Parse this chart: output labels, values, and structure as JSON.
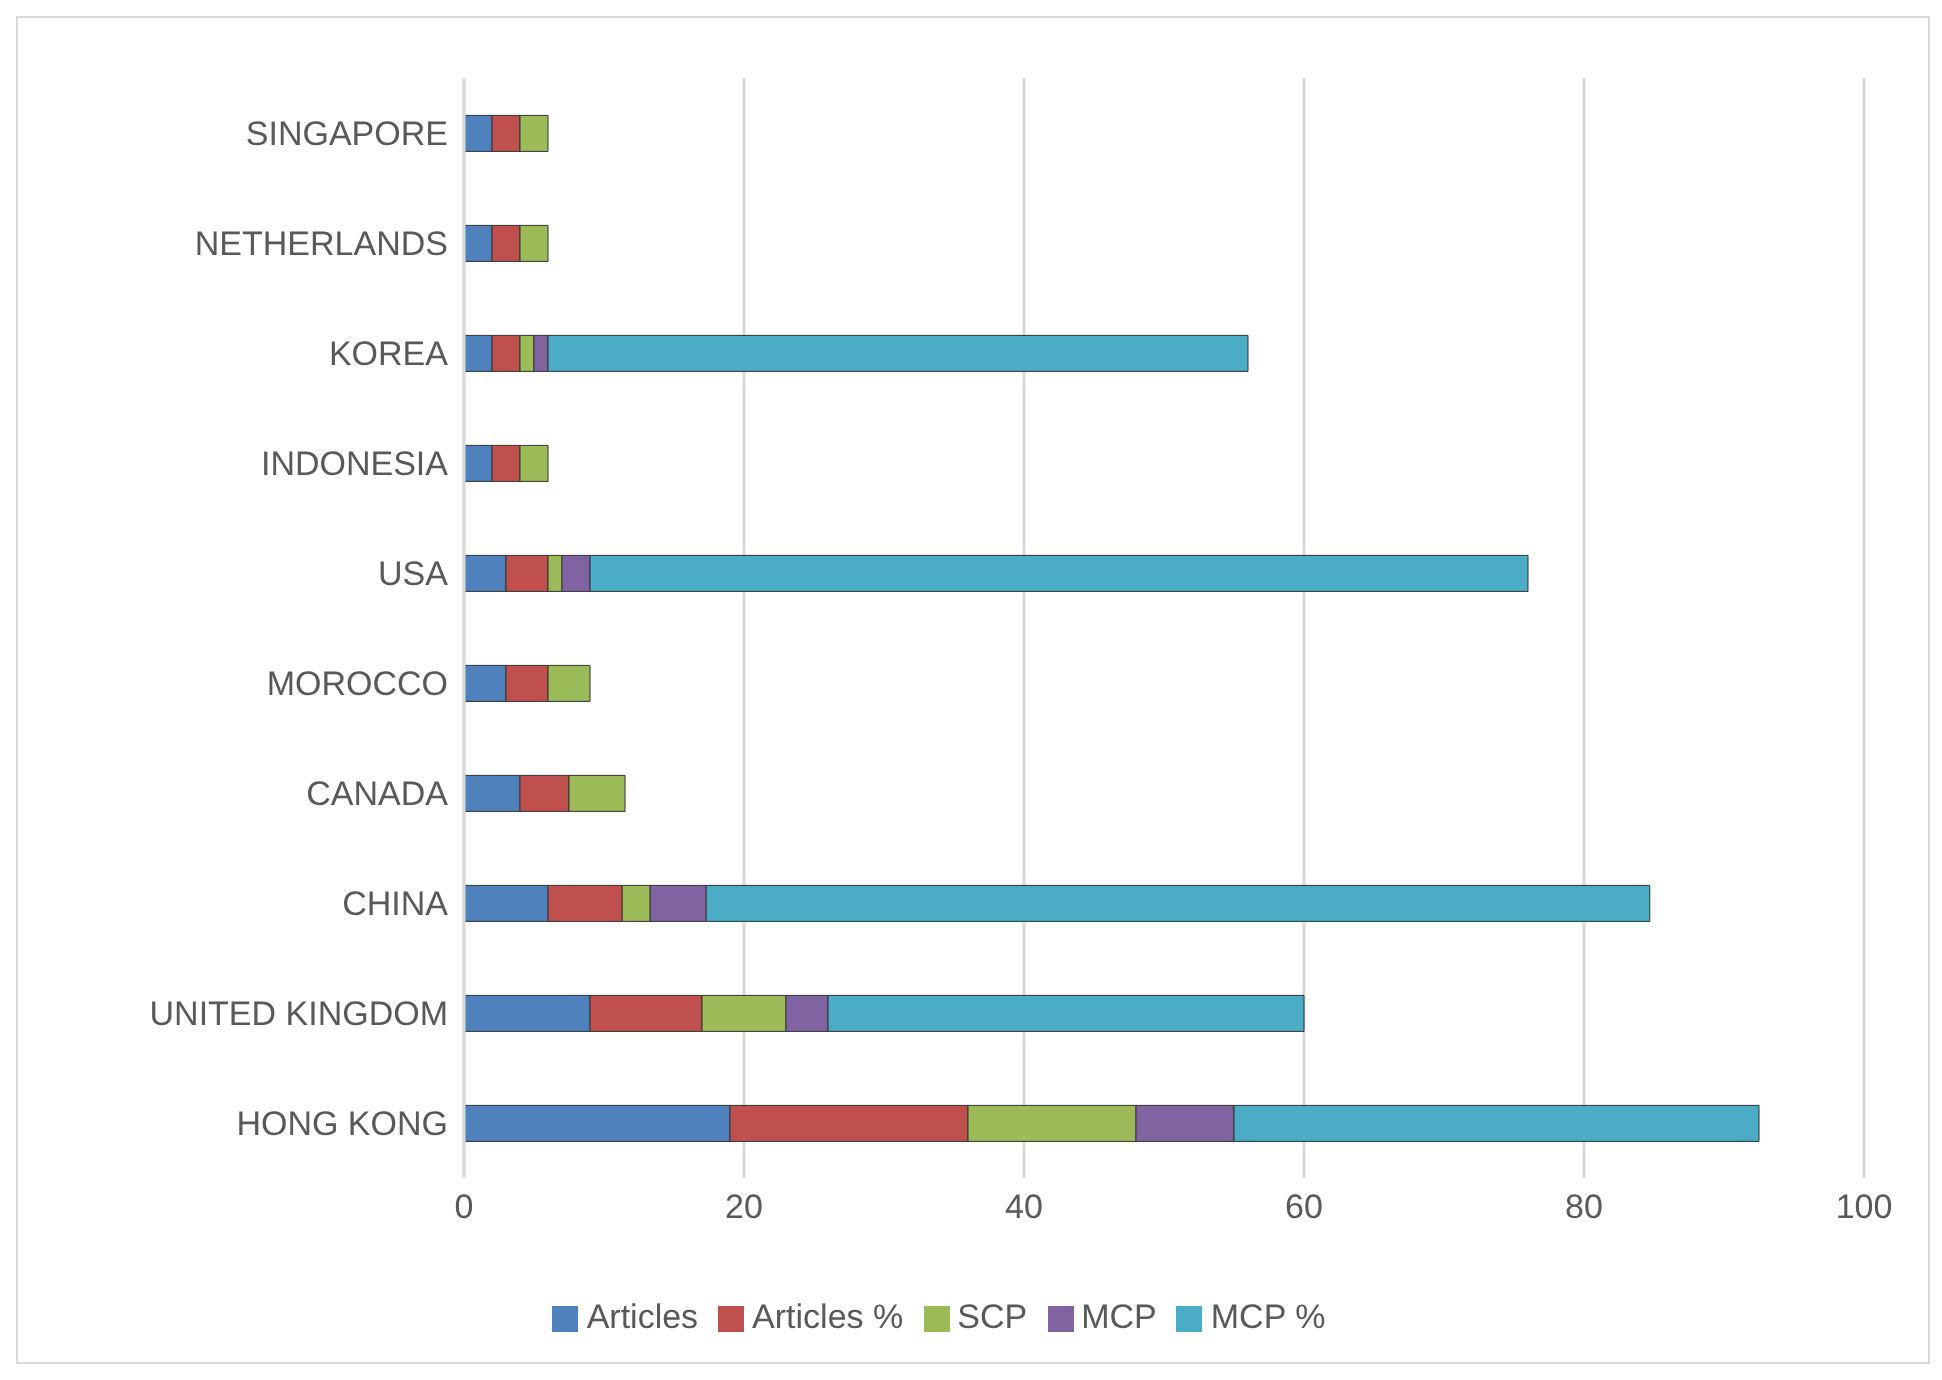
{
  "chart_data": {
    "type": "bar",
    "orientation": "horizontal",
    "stacked": true,
    "categories": [
      "SINGAPORE",
      "NETHERLANDS",
      "KOREA",
      "INDONESIA",
      "USA",
      "MOROCCO",
      "CANADA",
      "CHINA",
      "UNITED KINGDOM",
      "HONG KONG"
    ],
    "series": [
      {
        "name": "Articles",
        "color": "#4f81bd",
        "values": [
          2,
          2,
          2,
          2,
          3,
          3,
          4,
          6,
          9,
          19
        ]
      },
      {
        "name": "Articles %",
        "color": "#c0504d",
        "values": [
          2,
          2,
          2,
          2,
          3,
          3,
          3.5,
          5.3,
          8,
          17
        ]
      },
      {
        "name": "SCP",
        "color": "#9bbb59",
        "values": [
          2,
          2,
          1,
          2,
          1,
          3,
          4,
          2,
          6,
          12
        ]
      },
      {
        "name": "MCP",
        "color": "#8064a2",
        "values": [
          null,
          null,
          1,
          null,
          2,
          null,
          null,
          4,
          3,
          7
        ]
      },
      {
        "name": "MCP %",
        "color": "#4bacc6",
        "values": [
          null,
          null,
          50,
          null,
          67,
          null,
          null,
          67.4,
          34,
          37.5
        ]
      }
    ],
    "xlim": [
      0,
      100
    ],
    "xticks": [
      0,
      20,
      40,
      60,
      80,
      100
    ],
    "grid": "x",
    "legend": "bottom"
  }
}
